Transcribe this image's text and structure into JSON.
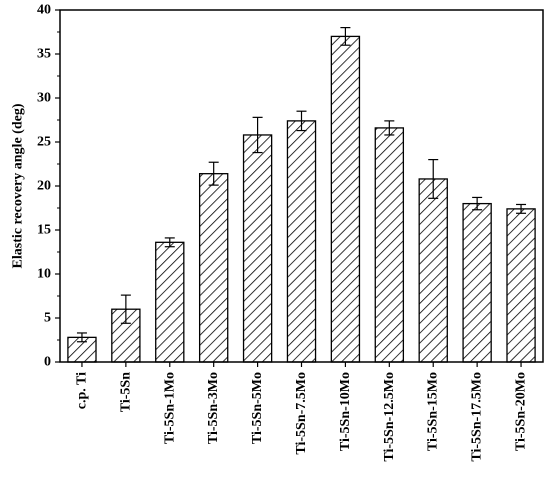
{
  "chart_data": {
    "type": "bar",
    "title": "",
    "xlabel": "",
    "ylabel": "Elastic recovery angle (deg)",
    "ylim": [
      0,
      40
    ],
    "yticks": [
      0,
      5,
      10,
      15,
      20,
      25,
      30,
      35,
      40
    ],
    "grid": false,
    "legend": "none",
    "bar_fill": "hatched",
    "categories": [
      "c.p. Ti",
      "Ti-5Sn",
      "Ti-5Sn-1Mo",
      "Ti-5Sn-3Mo",
      "Ti-5Sn-5Mo",
      "Ti-5Sn-7.5Mo",
      "Ti-5Sn-10Mo",
      "Ti-5Sn-12.5Mo",
      "Ti-5Sn-15Mo",
      "Ti-5Sn-17.5Mo",
      "Ti-5Sn-20Mo"
    ],
    "values": [
      2.8,
      6.0,
      13.6,
      21.4,
      25.8,
      27.4,
      37.0,
      26.6,
      20.8,
      18.0,
      17.4
    ],
    "errors": [
      0.5,
      1.6,
      0.5,
      1.3,
      2.0,
      1.1,
      1.0,
      0.8,
      2.2,
      0.7,
      0.5
    ],
    "colors": {
      "bar_stroke": "#000000",
      "hatch": "#000000",
      "background": "#ffffff"
    }
  }
}
